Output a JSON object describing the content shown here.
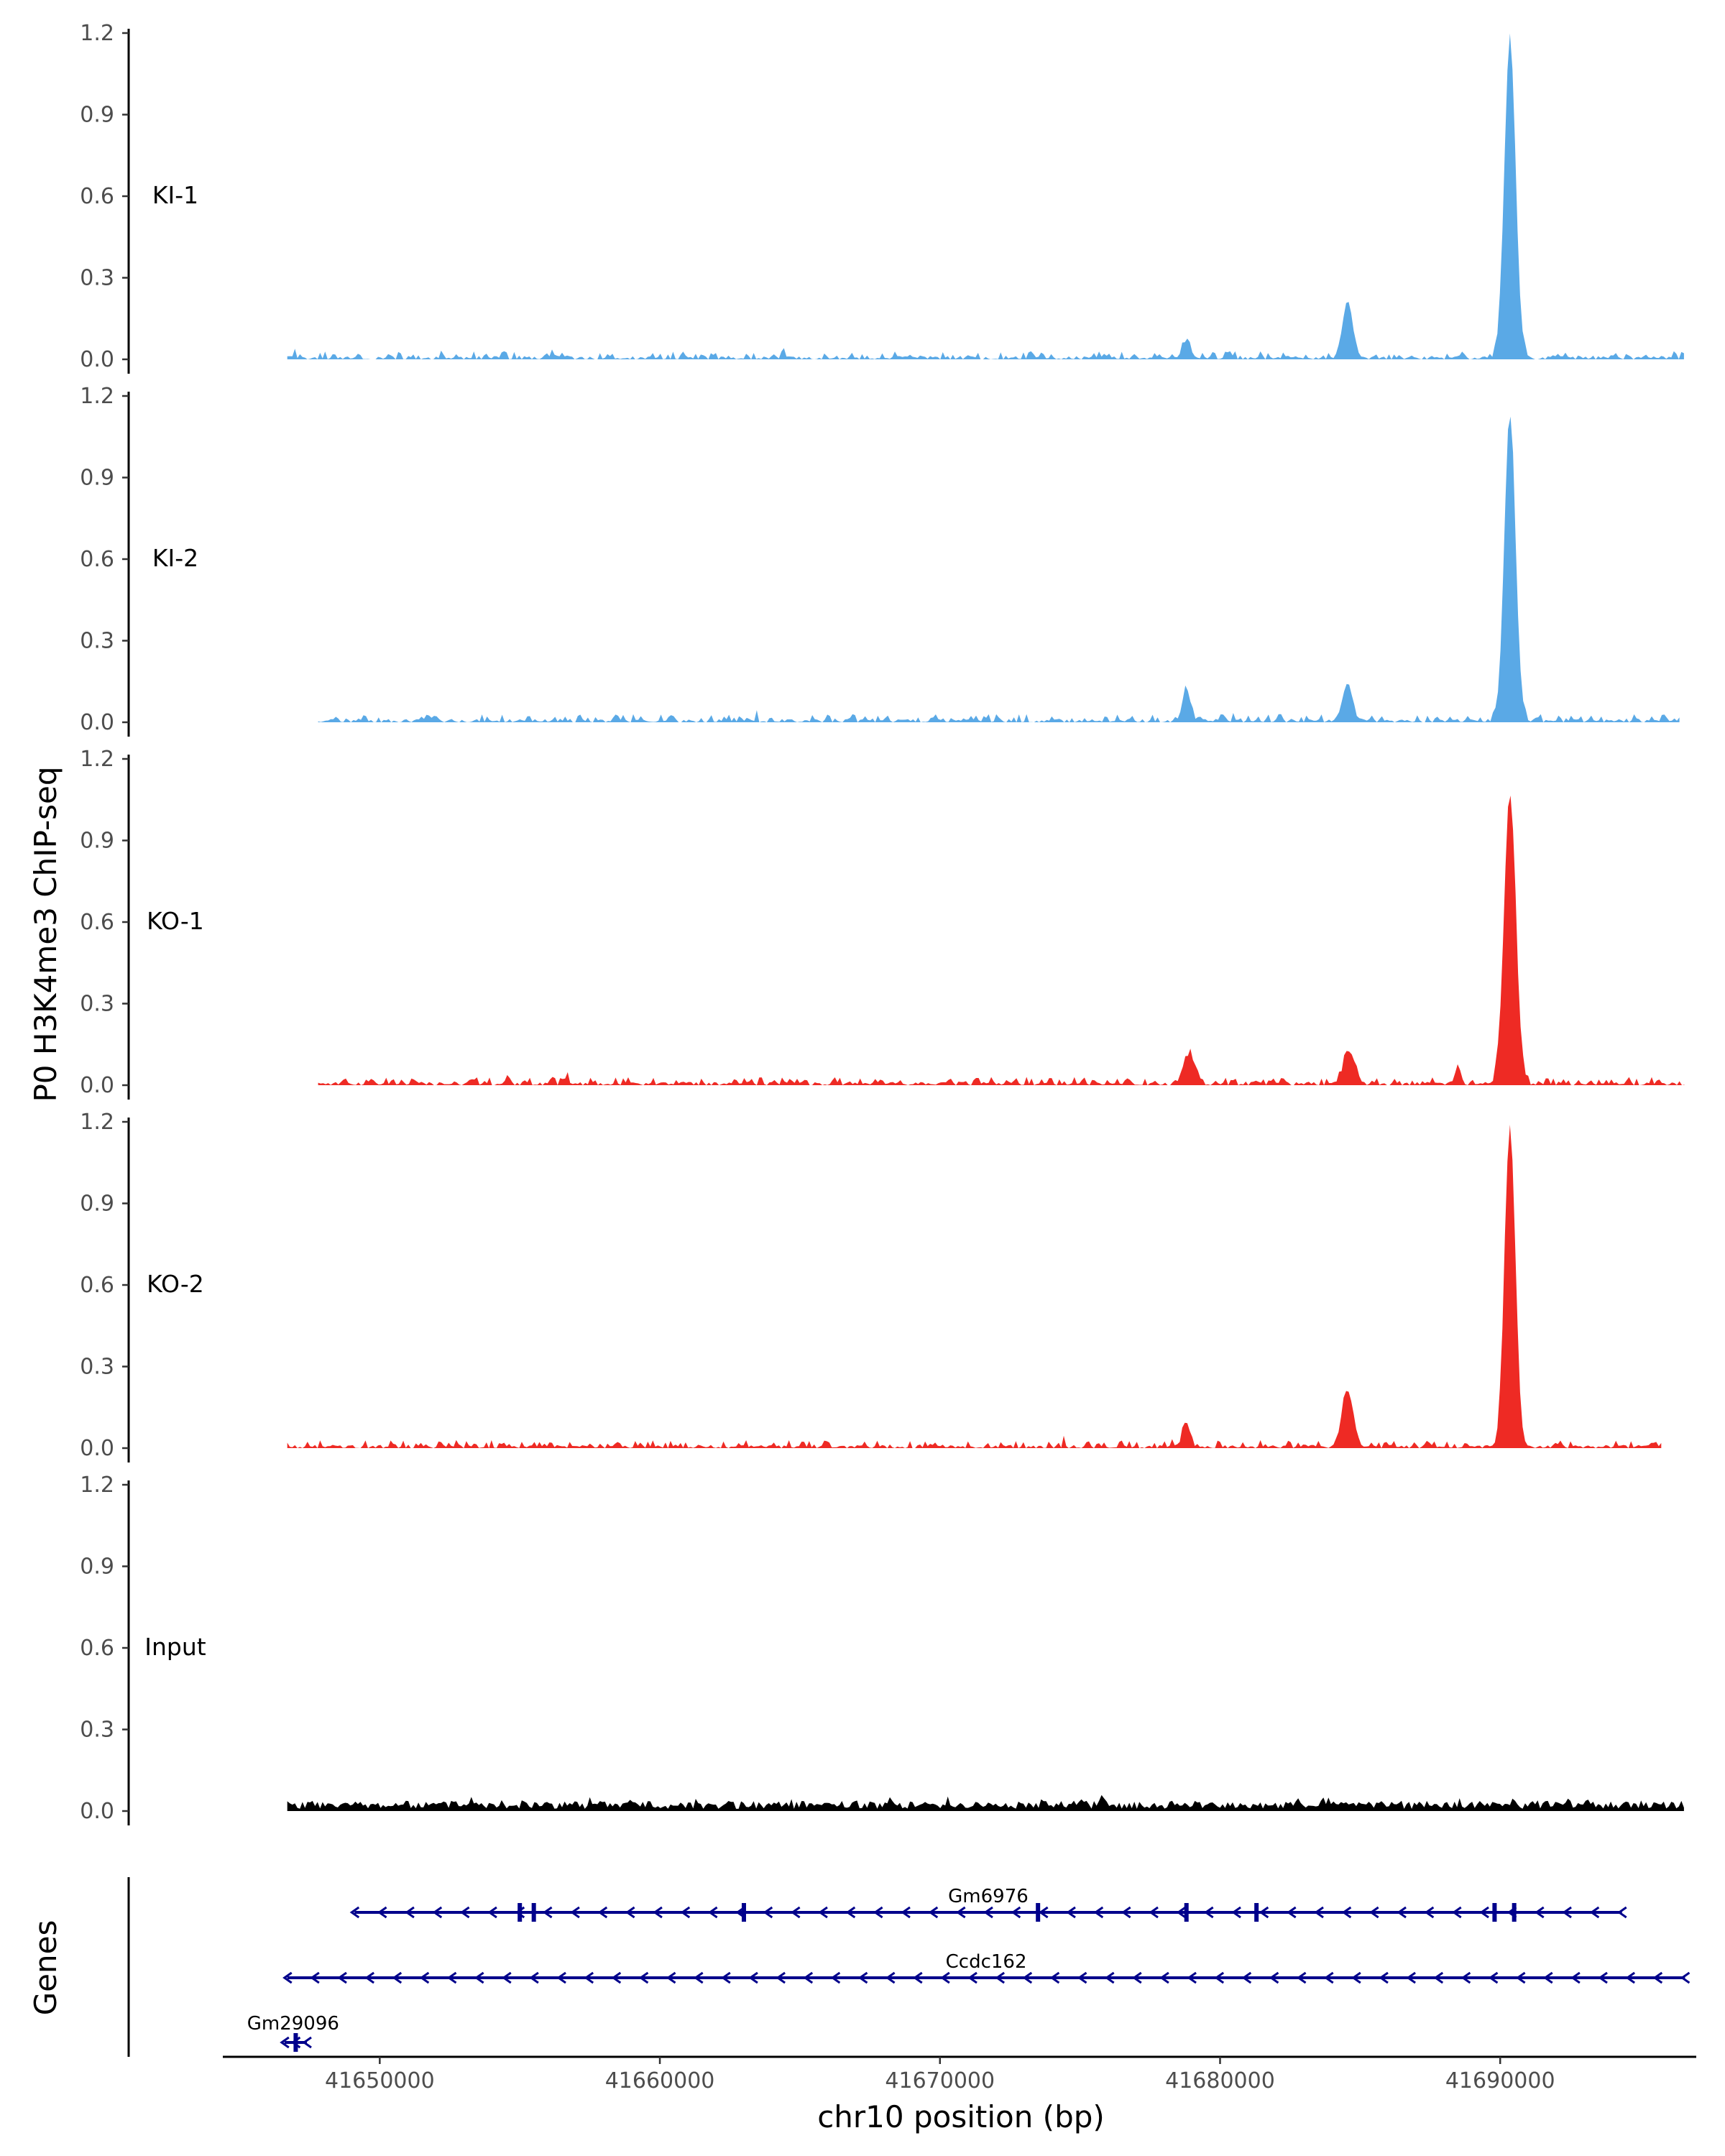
{
  "chart_data": {
    "type": "area",
    "title": "",
    "ylabel": "P0 H3K4me3 ChIP-seq",
    "xlabel": "chr10 position (bp)",
    "genes_label": "Genes",
    "xlim": [
      41644500,
      41697000
    ],
    "ylim": [
      0,
      1.2
    ],
    "xticks": [
      41650000,
      41660000,
      41670000,
      41680000,
      41690000
    ],
    "yticks": [
      "0.0",
      "0.3",
      "0.6",
      "0.9",
      "1.2"
    ],
    "colors": {
      "KI": "#5aa9e6",
      "KO": "#ee2a24",
      "Input": "#000000",
      "gene": "#00008b"
    },
    "tracks": [
      {
        "name": "KI-1",
        "color": "#5aa9e6",
        "seed": 3,
        "x_start": 41646700,
        "x_end": 41696600,
        "peaks": [
          [
            41690350,
            1.17,
            200
          ],
          [
            41684550,
            0.21,
            180
          ],
          [
            41678800,
            0.07,
            120
          ]
        ]
      },
      {
        "name": "KI-2",
        "color": "#5aa9e6",
        "seed": 7,
        "x_start": 41647800,
        "x_end": 41696400,
        "peaks": [
          [
            41690350,
            1.12,
            200
          ],
          [
            41684550,
            0.14,
            170
          ],
          [
            41678800,
            0.11,
            150
          ]
        ]
      },
      {
        "name": "KO-1",
        "color": "#ee2a24",
        "seed": 11,
        "x_start": 41647800,
        "x_end": 41696600,
        "peaks": [
          [
            41690350,
            1.07,
            210
          ],
          [
            41684600,
            0.12,
            200
          ],
          [
            41678900,
            0.11,
            200
          ],
          [
            41688500,
            0.07,
            100
          ]
        ]
      },
      {
        "name": "KO-2",
        "color": "#ee2a24",
        "seed": 19,
        "x_start": 41646700,
        "x_end": 41695800,
        "peaks": [
          [
            41690350,
            1.18,
            190
          ],
          [
            41684550,
            0.21,
            200
          ],
          [
            41678800,
            0.09,
            130
          ]
        ]
      },
      {
        "name": "Input",
        "color": "#000000",
        "seed": 23,
        "x_start": 41646700,
        "x_end": 41696600,
        "peaks": []
      }
    ],
    "genes": [
      {
        "name": "Gm6976",
        "start": 41649100,
        "end": 41694350,
        "strand": "-",
        "row": 1
      },
      {
        "name": "Ccdc162",
        "start": 41646700,
        "end": 41696600,
        "strand": "-",
        "row": 2
      },
      {
        "name": "Gm29096",
        "start": 41646600,
        "end": 41647400,
        "strand": "-",
        "row": 3
      }
    ]
  }
}
